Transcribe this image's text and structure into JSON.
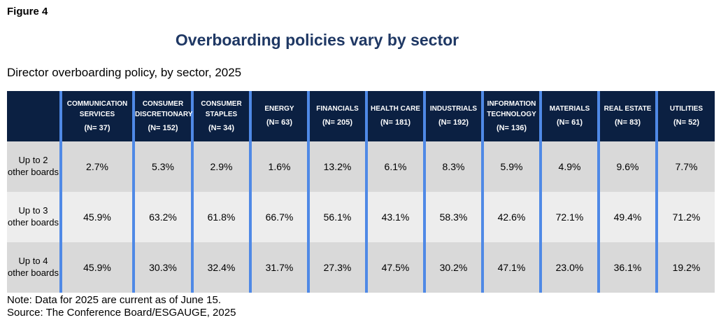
{
  "figure_label": "Figure 4",
  "title": "Overboarding policies vary by sector",
  "subtitle": "Director overboarding policy, by sector, 2025",
  "chart_data": {
    "type": "table",
    "title": "Overboarding policies vary by sector",
    "columns": [
      {
        "name": "COMMUNICATION SERVICES",
        "n": "(N= 37)"
      },
      {
        "name": "CONSUMER DISCRETIONARY",
        "n": "(N= 152)"
      },
      {
        "name": "CONSUMER STAPLES",
        "n": "(N= 34)"
      },
      {
        "name": "ENERGY",
        "n": "(N= 63)"
      },
      {
        "name": "FINANCIALS",
        "n": "(N= 205)"
      },
      {
        "name": "HEALTH CARE",
        "n": "(N= 181)"
      },
      {
        "name": "INDUSTRIALS",
        "n": "(N= 192)"
      },
      {
        "name": "INFORMATION TECHNOLOGY",
        "n": "(N= 136)"
      },
      {
        "name": "MATERIALS",
        "n": "(N= 61)"
      },
      {
        "name": "REAL ESTATE",
        "n": "(N= 83)"
      },
      {
        "name": "UTILITIES",
        "n": "(N= 52)"
      }
    ],
    "rows": [
      {
        "label": "Up to 2 other boards",
        "values": [
          "2.7%",
          "5.3%",
          "2.9%",
          "1.6%",
          "13.2%",
          "6.1%",
          "8.3%",
          "5.9%",
          "4.9%",
          "9.6%",
          "7.7%"
        ]
      },
      {
        "label": "Up to 3 other boards",
        "values": [
          "45.9%",
          "63.2%",
          "61.8%",
          "66.7%",
          "56.1%",
          "43.1%",
          "58.3%",
          "42.6%",
          "72.1%",
          "49.4%",
          "71.2%"
        ]
      },
      {
        "label": "Up to 4 other boards",
        "values": [
          "45.9%",
          "30.3%",
          "32.4%",
          "31.7%",
          "27.3%",
          "47.5%",
          "30.2%",
          "47.1%",
          "23.0%",
          "36.1%",
          "19.2%"
        ]
      }
    ]
  },
  "colors": {
    "header_bg": "#0b2042",
    "divider": "#4f89e6",
    "title": "#1f3864",
    "row_dark": "#d9d9d9",
    "row_light": "#ededed"
  },
  "note": "Note: Data for 2025 are current as of June 15.",
  "source": "Source: The Conference Board/ESGAUGE, 2025"
}
